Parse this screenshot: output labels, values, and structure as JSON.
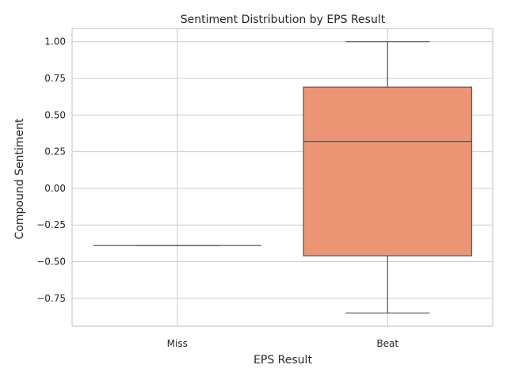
{
  "chart_data": {
    "type": "box",
    "title": "Sentiment Distribution by EPS Result",
    "xlabel": "EPS Result",
    "ylabel": "Compound Sentiment",
    "ylim": [
      -0.94,
      1.09
    ],
    "yticks": [
      -0.75,
      -0.5,
      -0.25,
      0.0,
      0.25,
      0.5,
      0.75,
      1.0
    ],
    "ytick_labels": [
      "−0.75",
      "−0.50",
      "−0.25",
      "0.00",
      "0.25",
      "0.50",
      "0.75",
      "1.00"
    ],
    "grid": true,
    "categories": [
      "Miss",
      "Beat"
    ],
    "boxes": [
      {
        "category": "Miss",
        "whisker_low": -0.39,
        "q1": -0.39,
        "median": -0.39,
        "q3": -0.39,
        "whisker_high": -0.39,
        "color": "#ec9575"
      },
      {
        "category": "Beat",
        "whisker_low": -0.85,
        "q1": -0.46,
        "median": 0.32,
        "q3": 0.69,
        "whisker_high": 1.0,
        "color": "#ec9575"
      }
    ]
  },
  "colors": {
    "grid": "#cccccc",
    "spine": "#cccccc",
    "line": "#555555",
    "text": "#262626",
    "background": "#ffffff"
  }
}
